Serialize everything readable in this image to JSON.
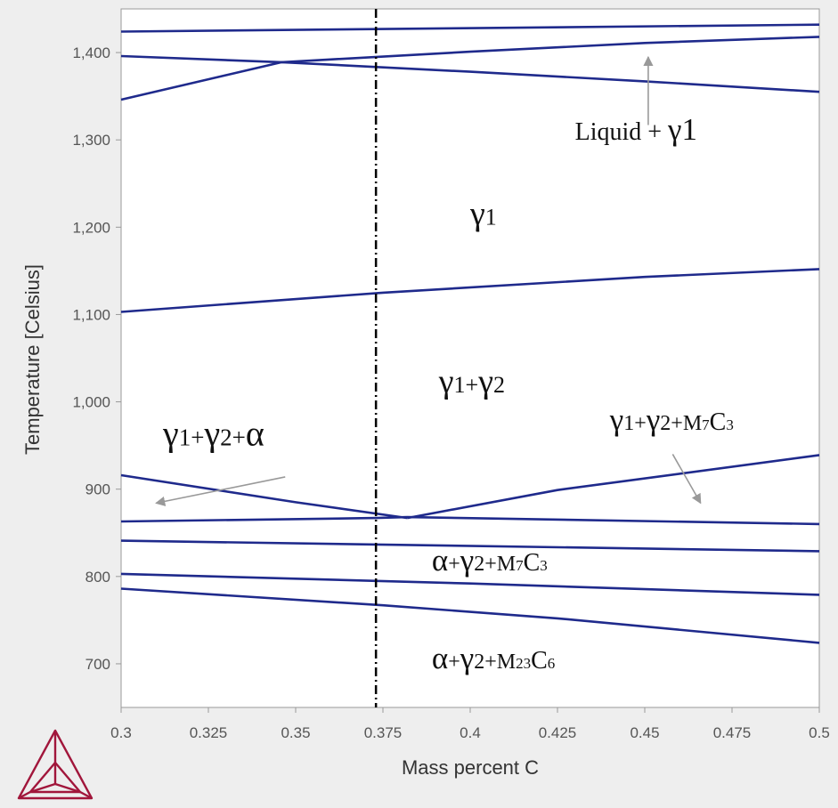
{
  "chart_data": {
    "type": "line",
    "title": "",
    "xlabel": "Mass percent C",
    "ylabel": "Temperature [Celsius]",
    "xlim": [
      0.3,
      0.5
    ],
    "ylim": [
      650,
      1450
    ],
    "grid": false,
    "x_ticks": [
      0.3,
      0.325,
      0.35,
      0.375,
      0.4,
      0.425,
      0.45,
      0.475,
      0.5
    ],
    "x_tick_labels": [
      "0.3",
      "0.325",
      "0.35",
      "0.375",
      "0.4",
      "0.425",
      "0.45",
      "0.475",
      "0.5"
    ],
    "y_ticks": [
      700,
      800,
      900,
      1000,
      1100,
      1200,
      1300,
      1400
    ],
    "y_tick_labels": [
      "700",
      "800",
      "900",
      "1,000",
      "1,100",
      "1,200",
      "1,300",
      "1,400"
    ],
    "line_color": "#1f2a8c",
    "reference_line": {
      "x": 0.373,
      "style": "dash-dot",
      "color": "#000000"
    },
    "series": [
      {
        "x": [
          0.3,
          0.5
        ],
        "y": [
          1424,
          1432
        ]
      },
      {
        "x": [
          0.3,
          0.346,
          0.4,
          0.45,
          0.5
        ],
        "y": [
          1346,
          1389,
          1401,
          1411,
          1418
        ]
      },
      {
        "x": [
          0.3,
          0.346,
          0.4,
          0.45,
          0.5
        ],
        "y": [
          1396,
          1389,
          1378,
          1367,
          1355
        ]
      },
      {
        "x": [
          0.3,
          0.375,
          0.45,
          0.5
        ],
        "y": [
          1103,
          1125,
          1143,
          1152
        ]
      },
      {
        "x": [
          0.3,
          0.35,
          0.382
        ],
        "y": [
          916,
          885,
          867
        ]
      },
      {
        "x": [
          0.382,
          0.425,
          0.5
        ],
        "y": [
          867,
          899,
          939
        ]
      },
      {
        "x": [
          0.3,
          0.373,
          0.382,
          0.5
        ],
        "y": [
          863,
          867,
          868,
          860
        ]
      },
      {
        "x": [
          0.3,
          0.5
        ],
        "y": [
          841,
          829
        ]
      },
      {
        "x": [
          0.3,
          0.4,
          0.5
        ],
        "y": [
          803,
          792,
          779
        ]
      },
      {
        "x": [
          0.3,
          0.375,
          0.425,
          0.5
        ],
        "y": [
          786,
          767,
          752,
          724
        ]
      }
    ],
    "annotations": [
      {
        "parts": [
          {
            "t": "Liquid + "
          },
          {
            "t": "γ",
            "big": true
          },
          {
            "t": "1",
            "big": true
          }
        ],
        "x": 0.43,
        "y": 1300,
        "size": 28,
        "arrow": {
          "from": [
            0.451,
            1317
          ],
          "to": [
            0.451,
            1395
          ]
        }
      },
      {
        "parts": [
          {
            "t": "γ",
            "big": true
          },
          {
            "t": "1"
          }
        ],
        "x": 0.4,
        "y": 1203,
        "size": 30
      },
      {
        "parts": [
          {
            "t": "γ",
            "big": true
          },
          {
            "t": "1+"
          },
          {
            "t": "γ",
            "big": true
          },
          {
            "t": "2"
          }
        ],
        "x": 0.391,
        "y": 1011,
        "size": 30
      },
      {
        "parts": [
          {
            "t": "γ",
            "big": true
          },
          {
            "t": "1+"
          },
          {
            "t": "γ",
            "big": true
          },
          {
            "t": "2+M"
          },
          {
            "t": "7",
            "sub": true
          },
          {
            "t": "C"
          },
          {
            "t": "3",
            "sub": true
          }
        ],
        "x": 0.44,
        "y": 968,
        "size": 28,
        "arrow": {
          "from": [
            0.458,
            940
          ],
          "to": [
            0.466,
            884
          ]
        }
      },
      {
        "parts": [
          {
            "t": "γ",
            "big": true
          },
          {
            "t": "1+"
          },
          {
            "t": "γ",
            "big": true
          },
          {
            "t": "2+"
          },
          {
            "t": "α",
            "big": true
          }
        ],
        "x": 0.312,
        "y": 950,
        "size": 32,
        "arrow": {
          "from": [
            0.347,
            914
          ],
          "to": [
            0.31,
            884
          ]
        }
      },
      {
        "parts": [
          {
            "t": "α",
            "big": true
          },
          {
            "t": "+"
          },
          {
            "t": "γ",
            "big": true
          },
          {
            "t": "2+M"
          },
          {
            "t": "7",
            "sub": true
          },
          {
            "t": "C"
          },
          {
            "t": "3",
            "sub": true
          }
        ],
        "x": 0.389,
        "y": 807,
        "size": 28,
        "arrow": {
          "from": [
            0.386,
            800
          ],
          "to": [
            0.386,
            800
          ]
        }
      },
      {
        "parts": [
          {
            "t": "α",
            "big": true
          },
          {
            "t": "+"
          },
          {
            "t": "γ",
            "big": true
          },
          {
            "t": "2+M"
          },
          {
            "t": "23",
            "sub": true
          },
          {
            "t": "C"
          },
          {
            "t": "6",
            "sub": true
          }
        ],
        "x": 0.389,
        "y": 695,
        "size": 28
      }
    ]
  }
}
